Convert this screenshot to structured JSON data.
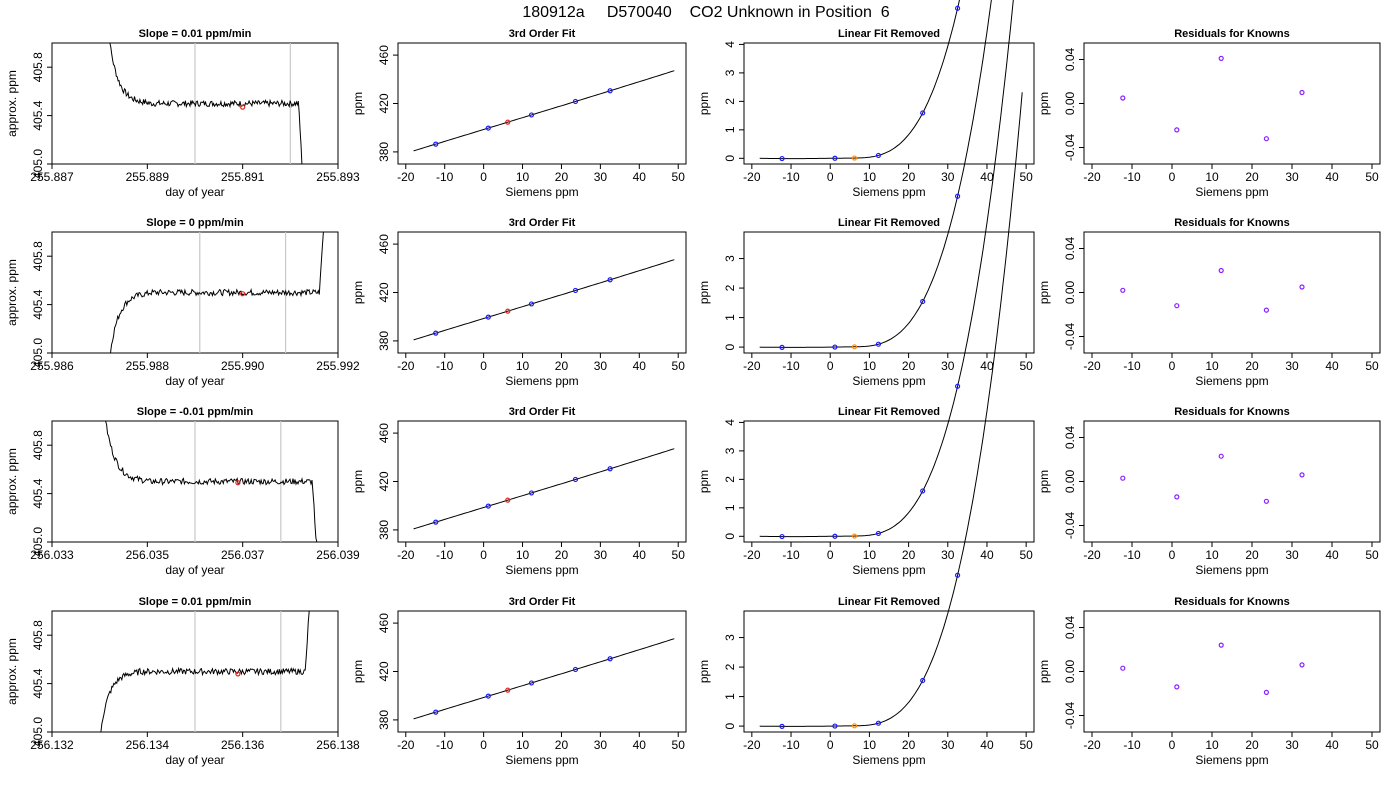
{
  "page_title": "180912a     D570040    CO2 Unknown in Position  6",
  "colors": {
    "unknown_point": "#e8201a",
    "known_point": "#1a1aff",
    "residual_point": "#8a20ff",
    "unknown_linear_point": "#ff8800",
    "guide_line": "#c8c8c8",
    "curve": "#000000"
  },
  "common": {
    "time_xlabel": "day of year",
    "time_ylabel": "approx. ppm",
    "fit_title": "3rd Order Fit",
    "linear_title": "Linear Fit Removed",
    "resid_title": "Residuals for Knowns",
    "siemens_xlabel": "Siemens ppm",
    "ppm_ylabel": "ppm"
  },
  "chart_data": [
    {
      "row": 1,
      "time": {
        "type": "line",
        "title": "Slope =  0.01  ppm/min",
        "xlim": [
          255.887,
          255.893
        ],
        "ylim": [
          405.0,
          406.0
        ],
        "xticks": [
          "255.887",
          "255.889",
          "255.891",
          "255.893"
        ],
        "yticks": [
          "405.0",
          "405.4",
          "405.8"
        ],
        "start": 255.8881,
        "end": 255.8923,
        "shape": "down",
        "level": 405.5,
        "vlines": [
          255.89,
          255.892
        ],
        "marker": [
          255.891,
          405.47
        ]
      },
      "fit": {
        "type": "line",
        "title": "3rd Order Fit",
        "xlim": [
          -22,
          52
        ],
        "ylim": [
          370,
          470
        ],
        "yticks": [
          "380",
          "420",
          "460"
        ],
        "known_x": [
          -12.3,
          1.2,
          12.3,
          23.6,
          32.5
        ],
        "unknown_x": 6.2
      },
      "linear": {
        "type": "line",
        "title": "Linear Fit Removed",
        "xlim": [
          -22,
          52
        ],
        "ylim": [
          -0.2,
          4.05
        ],
        "yticks": [
          "0",
          "1",
          "2",
          "3",
          "4"
        ],
        "known_x": [
          -12.3,
          1.2,
          12.3,
          23.6,
          32.5
        ],
        "unknown_x": 6.2
      },
      "resid": {
        "type": "scatter",
        "title": "Residuals for Knowns",
        "xlim": [
          -22,
          52
        ],
        "ylim": [
          -0.055,
          0.055
        ],
        "yticks": [
          "-0.04",
          "0.00",
          "0.04"
        ],
        "x": [
          -12.3,
          1.2,
          12.3,
          23.6,
          32.5
        ],
        "y": [
          0.005,
          -0.024,
          0.041,
          -0.032,
          0.01
        ]
      }
    },
    {
      "row": 2,
      "time": {
        "type": "line",
        "title": "Slope =  0  ppm/min",
        "xlim": [
          255.986,
          255.992
        ],
        "ylim": [
          405.0,
          406.0
        ],
        "xticks": [
          "255.986",
          "255.988",
          "255.990",
          "255.992"
        ],
        "yticks": [
          "405.0",
          "405.4",
          "405.8"
        ],
        "start": 255.9871,
        "end": 255.9918,
        "shape": "up",
        "level": 405.5,
        "vlines": [
          255.9891,
          255.9909
        ],
        "marker": [
          255.99,
          405.49
        ]
      },
      "fit": {
        "type": "line",
        "title": "3rd Order Fit",
        "xlim": [
          -22,
          52
        ],
        "ylim": [
          370,
          470
        ],
        "yticks": [
          "380",
          "420",
          "460"
        ],
        "known_x": [
          -12.3,
          1.2,
          12.3,
          23.6,
          32.5
        ],
        "unknown_x": 6.2
      },
      "linear": {
        "type": "line",
        "title": "Linear Fit Removed",
        "xlim": [
          -22,
          52
        ],
        "ylim": [
          -0.2,
          3.9
        ],
        "yticks": [
          "0",
          "1",
          "2",
          "3"
        ],
        "known_x": [
          -12.3,
          1.2,
          12.3,
          23.6,
          32.5
        ],
        "unknown_x": 6.2
      },
      "resid": {
        "type": "scatter",
        "title": "Residuals for Knowns",
        "xlim": [
          -22,
          52
        ],
        "ylim": [
          -0.055,
          0.055
        ],
        "yticks": [
          "-0.04",
          "0.00",
          "0.04"
        ],
        "x": [
          -12.3,
          1.2,
          12.3,
          23.6,
          32.5
        ],
        "y": [
          0.002,
          -0.012,
          0.02,
          -0.016,
          0.005
        ]
      }
    },
    {
      "row": 3,
      "time": {
        "type": "line",
        "title": "Slope =  -0.01  ppm/min",
        "xlim": [
          256.033,
          256.039
        ],
        "ylim": [
          405.0,
          406.0
        ],
        "xticks": [
          "256.033",
          "256.035",
          "256.037",
          "256.039"
        ],
        "yticks": [
          "405.0",
          "405.4",
          "405.8"
        ],
        "start": 256.034,
        "end": 256.0386,
        "shape": "down",
        "level": 405.5,
        "vlines": [
          256.036,
          256.0378
        ],
        "marker": [
          256.0369,
          405.49
        ]
      },
      "fit": {
        "type": "line",
        "title": "3rd Order Fit",
        "xlim": [
          -22,
          52
        ],
        "ylim": [
          370,
          470
        ],
        "yticks": [
          "380",
          "420",
          "460"
        ],
        "known_x": [
          -12.3,
          1.2,
          12.3,
          23.6,
          32.5
        ],
        "unknown_x": 6.2
      },
      "linear": {
        "type": "line",
        "title": "Linear Fit Removed",
        "xlim": [
          -22,
          52
        ],
        "ylim": [
          -0.2,
          4.05
        ],
        "yticks": [
          "0",
          "1",
          "2",
          "3",
          "4"
        ],
        "known_x": [
          -12.3,
          1.2,
          12.3,
          23.6,
          32.5
        ],
        "unknown_x": 6.2
      },
      "resid": {
        "type": "scatter",
        "title": "Residuals for Knowns",
        "xlim": [
          -22,
          52
        ],
        "ylim": [
          -0.055,
          0.055
        ],
        "yticks": [
          "-0.04",
          "0.00",
          "0.04"
        ],
        "x": [
          -12.3,
          1.2,
          12.3,
          23.6,
          32.5
        ],
        "y": [
          0.003,
          -0.014,
          0.023,
          -0.018,
          0.006
        ]
      }
    },
    {
      "row": 4,
      "time": {
        "type": "line",
        "title": "Slope =  0.01  ppm/min",
        "xlim": [
          256.132,
          256.138
        ],
        "ylim": [
          405.0,
          406.0
        ],
        "xticks": [
          "256.132",
          "256.134",
          "256.136",
          "256.138"
        ],
        "yticks": [
          "405.0",
          "405.4",
          "405.8"
        ],
        "start": 256.1329,
        "end": 256.1375,
        "shape": "up",
        "level": 405.5,
        "vlines": [
          256.135,
          256.1368
        ],
        "marker": [
          256.1359,
          405.48
        ]
      },
      "fit": {
        "type": "line",
        "title": "3rd Order Fit",
        "xlim": [
          -22,
          52
        ],
        "ylim": [
          370,
          470
        ],
        "yticks": [
          "380",
          "420",
          "460"
        ],
        "known_x": [
          -12.3,
          1.2,
          12.3,
          23.6,
          32.5
        ],
        "unknown_x": 6.2
      },
      "linear": {
        "type": "line",
        "title": "Linear Fit Removed",
        "xlim": [
          -22,
          52
        ],
        "ylim": [
          -0.2,
          3.9
        ],
        "yticks": [
          "0",
          "1",
          "2",
          "3"
        ],
        "known_x": [
          -12.3,
          1.2,
          12.3,
          23.6,
          32.5
        ],
        "unknown_x": 6.2
      },
      "resid": {
        "type": "scatter",
        "title": "Residuals for Knowns",
        "xlim": [
          -22,
          52
        ],
        "ylim": [
          -0.055,
          0.055
        ],
        "yticks": [
          "-0.04",
          "0.00",
          "0.04"
        ],
        "x": [
          -12.3,
          1.2,
          12.3,
          23.6,
          32.5
        ],
        "y": [
          0.003,
          -0.014,
          0.024,
          -0.019,
          0.006
        ]
      }
    }
  ]
}
